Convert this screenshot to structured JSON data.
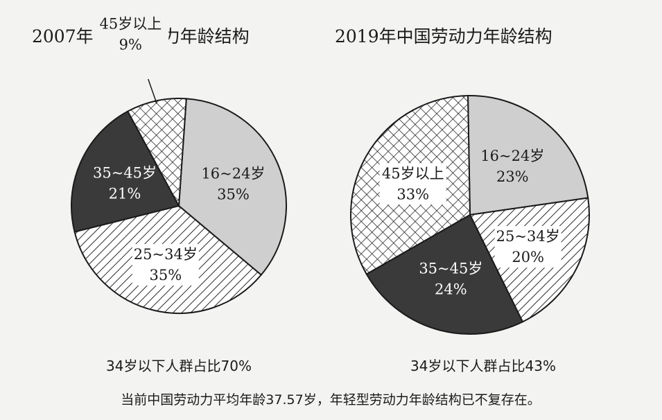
{
  "colors": {
    "background": "#f3f3f1",
    "light_gray": "#cfcfcf",
    "dark": "#3a3a3a",
    "outline": "#1a1a1a",
    "hatch_line": "#2a2a2a"
  },
  "chart_data": [
    {
      "type": "pie",
      "title": "2007年中国劳动力年龄结构",
      "slices": [
        {
          "label": "16~24岁",
          "value": 35,
          "display": "35%",
          "fill": "light-gray"
        },
        {
          "label": "25~34岁",
          "value": 35,
          "display": "35%",
          "fill": "diagonal-hatch"
        },
        {
          "label": "35~45岁",
          "value": 21,
          "display": "21%",
          "fill": "dark"
        },
        {
          "label": "45岁以上",
          "value": 9,
          "display": "9%",
          "fill": "crosshatch",
          "label_outside": true
        }
      ],
      "caption": "34岁以下人群占比70%"
    },
    {
      "type": "pie",
      "title": "2019年中国劳动力年龄结构",
      "slices": [
        {
          "label": "16~24岁",
          "value": 23,
          "display": "23%",
          "fill": "light-gray"
        },
        {
          "label": "25~34岁",
          "value": 20,
          "display": "20%",
          "fill": "diagonal-hatch"
        },
        {
          "label": "35~45岁",
          "value": 24,
          "display": "24%",
          "fill": "dark"
        },
        {
          "label": "45岁以上",
          "value": 33,
          "display": "33%",
          "fill": "crosshatch"
        }
      ],
      "caption": "34岁以下人群占比43%"
    }
  ],
  "footer": "当前中国劳动力平均年龄37.57岁，年轻型劳动力年龄结构已不复存在。"
}
